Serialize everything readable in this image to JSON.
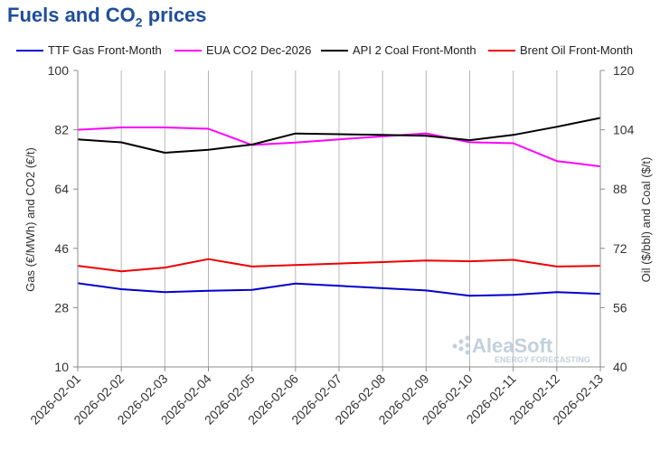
{
  "header": {
    "title_main": "Fuels and CO",
    "title_sub": "2",
    "title_end": " prices"
  },
  "watermark": {
    "brand": "AleaSoft",
    "tagline": "ENERGY FORECASTING"
  },
  "chart_data": {
    "type": "line",
    "x": [
      "2026-02-01",
      "2026-02-02",
      "2026-02-03",
      "2026-02-04",
      "2026-02-05",
      "2026-02-06",
      "2026-02-07",
      "2026-02-08",
      "2026-02-09",
      "2026-02-10",
      "2026-02-11",
      "2026-02-12",
      "2026-02-13"
    ],
    "ylabel_left": "Gas (€/MWh) and CO2 (€/t)",
    "ylabel_right": "Oil ($/bbl) and Coal ($/t)",
    "ylim_left": [
      10,
      100
    ],
    "ylim_right": [
      40,
      120
    ],
    "yticks_left": [
      "10",
      "28",
      "46",
      "64",
      "82",
      "100"
    ],
    "yticks_right": [
      "40",
      "56",
      "72",
      "88",
      "104",
      "120"
    ],
    "grid": "vertical",
    "legend_position": "top",
    "series": [
      {
        "name": "TTF Gas Front-Month",
        "axis": "left",
        "color": "#0000cc",
        "values": [
          35.4,
          33.6,
          32.7,
          33.1,
          33.4,
          35.3,
          34.6,
          33.9,
          33.2,
          31.6,
          31.9,
          32.7,
          32.2
        ]
      },
      {
        "name": "EUA CO2 Dec-2026",
        "axis": "left",
        "color": "#ff00ff",
        "values": [
          82.0,
          82.7,
          82.7,
          82.3,
          77.4,
          78.1,
          79.1,
          80.0,
          80.9,
          78.2,
          77.9,
          72.5,
          70.9
        ]
      },
      {
        "name": "API 2 Coal Front-Month",
        "axis": "right",
        "color": "#000000",
        "values": [
          101.4,
          100.6,
          97.8,
          98.6,
          100.0,
          103.0,
          102.8,
          102.6,
          102.4,
          101.2,
          102.6,
          104.8,
          107.2
        ]
      },
      {
        "name": "Brent Oil Front-Month",
        "axis": "right",
        "color": "#ee0000",
        "values": [
          67.3,
          65.8,
          66.8,
          69.1,
          67.1,
          67.5,
          67.9,
          68.3,
          68.7,
          68.5,
          68.9,
          67.1,
          67.3
        ]
      }
    ]
  }
}
